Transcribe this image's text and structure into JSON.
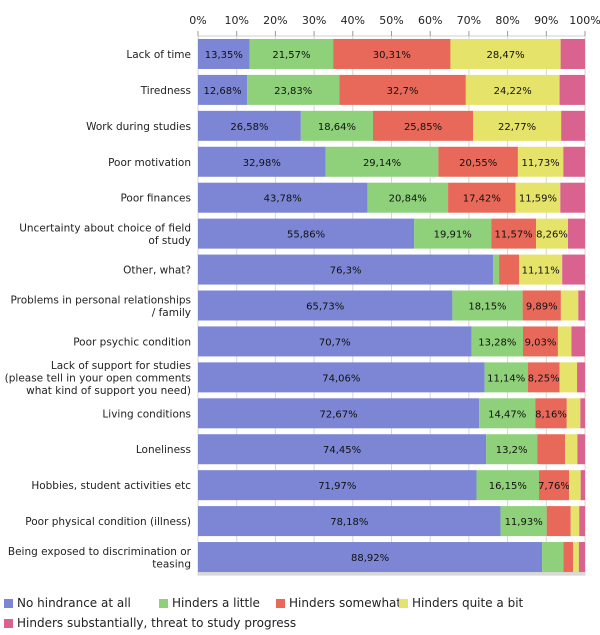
{
  "chart_data": {
    "type": "bar",
    "orientation": "horizontal",
    "stacked": true,
    "percent_axis": true,
    "xlim": [
      0,
      100
    ],
    "x_ticks": [
      "0%",
      "10%",
      "20%",
      "30%",
      "40%",
      "50%",
      "60%",
      "70%",
      "80%",
      "90%",
      "100%"
    ],
    "grid": true,
    "legend_position": "bottom",
    "categories": [
      [
        "Lack of time"
      ],
      [
        "Tiredness"
      ],
      [
        "Work during studies"
      ],
      [
        "Poor motivation"
      ],
      [
        "Poor finances"
      ],
      [
        "Uncertainty about choice of field",
        "of study"
      ],
      [
        "Other, what?"
      ],
      [
        "Problems in personal relationships",
        "/ family"
      ],
      [
        "Poor psychic condition"
      ],
      [
        "Lack of support for studies",
        "(please tell in your open comments",
        "what kind of support you need)"
      ],
      [
        "Living conditions"
      ],
      [
        "Loneliness"
      ],
      [
        "Hobbies, student activities etc"
      ],
      [
        "Poor physical condition (illness)"
      ],
      [
        "Being exposed to discrimination or",
        "teasing"
      ]
    ],
    "series": [
      {
        "name": "No hindrance at all",
        "color": "#7c86d4",
        "values": [
          13.35,
          12.68,
          26.58,
          32.98,
          43.78,
          55.86,
          76.3,
          65.73,
          70.7,
          74.06,
          72.67,
          74.45,
          71.97,
          78.18,
          88.92
        ],
        "labels": [
          "13,35%",
          "12,68%",
          "26,58%",
          "32,98%",
          "43,78%",
          "55,86%",
          "76,3%",
          "65,73%",
          "70,7%",
          "74,06%",
          "72,67%",
          "74,45%",
          "71,97%",
          "78,18%",
          "88,92%"
        ]
      },
      {
        "name": "Hinders a little",
        "color": "#8fd07a",
        "values": [
          21.57,
          23.83,
          18.64,
          29.14,
          20.84,
          19.91,
          1.5,
          18.15,
          13.28,
          11.14,
          14.47,
          13.2,
          16.15,
          11.93,
          5.5
        ],
        "labels": [
          "21,57%",
          "23,83%",
          "18,64%",
          "29,14%",
          "20,84%",
          "19,91%",
          "",
          "18,15%",
          "13,28%",
          "11,14%",
          "14,47%",
          "13,2%",
          "16,15%",
          "11,93%",
          ""
        ]
      },
      {
        "name": "Hinders somewhat",
        "color": "#e8695a",
        "values": [
          30.31,
          32.7,
          25.85,
          20.55,
          17.42,
          11.57,
          5.2,
          9.89,
          9.03,
          8.25,
          8.16,
          7.2,
          7.76,
          6.2,
          2.5
        ],
        "labels": [
          "30,31%",
          "32,7%",
          "25,85%",
          "20,55%",
          "17,42%",
          "11,57%",
          "",
          "9,89%",
          "9,03%",
          "8,25%",
          "8,16%",
          "",
          "7,76%",
          "",
          ""
        ]
      },
      {
        "name": "Hinders quite a bit",
        "color": "#e6e36a",
        "values": [
          28.47,
          24.22,
          22.77,
          11.73,
          11.59,
          8.26,
          11.11,
          4.5,
          3.5,
          4.5,
          3.5,
          3.2,
          3.0,
          2.2,
          1.5
        ],
        "labels": [
          "28,47%",
          "24,22%",
          "22,77%",
          "11,73%",
          "11,59%",
          "8,26%",
          "11,11%",
          "",
          "",
          "",
          "",
          "",
          "",
          "",
          ""
        ]
      },
      {
        "name": "Hinders substantially, threat to study progress",
        "color": "#d9628f",
        "values": [
          6.3,
          6.57,
          6.16,
          5.6,
          6.37,
          4.4,
          5.89,
          1.73,
          3.49,
          2.05,
          1.2,
          1.95,
          1.12,
          1.49,
          1.58
        ],
        "labels": [
          "",
          "",
          "",
          "",
          "",
          "",
          "",
          "",
          "",
          "",
          "",
          "",
          "",
          "",
          ""
        ]
      }
    ]
  }
}
